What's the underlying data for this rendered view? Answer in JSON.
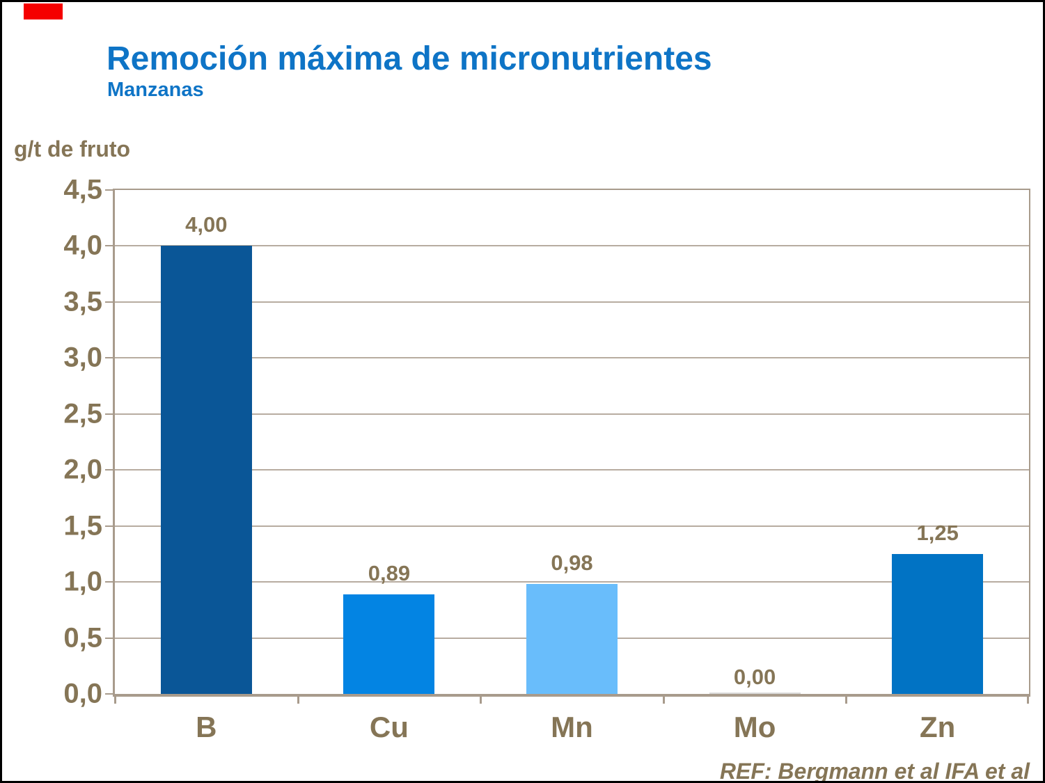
{
  "header": {
    "title": "Remoción máxima de micronutrientes",
    "subtitle": "Manzanas"
  },
  "footer": {
    "reference": "REF: Bergmann et al IFA et al"
  },
  "colors": {
    "title_blue": "#0e74c6",
    "label_brown": "#857556",
    "axis_frame": "#a89b8c",
    "gridline": "#b7aca0",
    "corner_marker_red": "#f50000",
    "background": "#ffffff"
  },
  "chart_data": {
    "type": "bar",
    "title": "Remoción máxima de micronutrientes",
    "subtitle": "Manzanas",
    "ylabel": "g/t de fruto",
    "xlabel": "",
    "categories": [
      "B",
      "Cu",
      "Mn",
      "Mo",
      "Zn"
    ],
    "values": [
      4.0,
      0.89,
      0.98,
      0.0,
      1.25
    ],
    "data_labels": [
      "4,00",
      "0,89",
      "0,98",
      "0,00",
      "1,25"
    ],
    "bar_colors": [
      "#0a5697",
      "#0384e3",
      "#69bdfb",
      "#d9d9d9",
      "#0173c4"
    ],
    "ylim": [
      0,
      4.5
    ],
    "ytick_step": 0.5,
    "ytick_labels": [
      "0,0",
      "0,5",
      "1,0",
      "1,5",
      "2,0",
      "2,5",
      "3,0",
      "3,5",
      "4,0",
      "4,5"
    ],
    "decimal_separator": ",",
    "grid": true,
    "legend": "none"
  }
}
